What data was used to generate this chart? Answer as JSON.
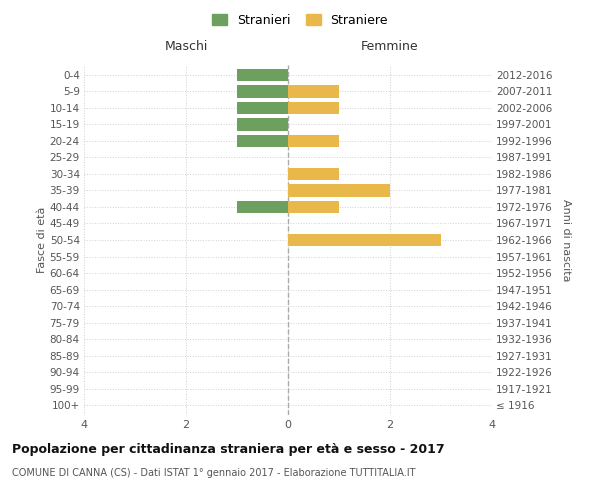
{
  "age_groups": [
    "100+",
    "95-99",
    "90-94",
    "85-89",
    "80-84",
    "75-79",
    "70-74",
    "65-69",
    "60-64",
    "55-59",
    "50-54",
    "45-49",
    "40-44",
    "35-39",
    "30-34",
    "25-29",
    "20-24",
    "15-19",
    "10-14",
    "5-9",
    "0-4"
  ],
  "birth_years": [
    "≤ 1916",
    "1917-1921",
    "1922-1926",
    "1927-1931",
    "1932-1936",
    "1937-1941",
    "1942-1946",
    "1947-1951",
    "1952-1956",
    "1957-1961",
    "1962-1966",
    "1967-1971",
    "1972-1976",
    "1977-1981",
    "1982-1986",
    "1987-1991",
    "1992-1996",
    "1997-2001",
    "2002-2006",
    "2007-2011",
    "2012-2016"
  ],
  "stranieri_maschi": [
    0,
    0,
    0,
    0,
    0,
    0,
    0,
    0,
    0,
    0,
    0,
    0,
    1,
    0,
    0,
    0,
    1,
    1,
    1,
    1,
    1
  ],
  "straniere_femmine": [
    0,
    0,
    0,
    0,
    0,
    0,
    0,
    0,
    0,
    0,
    3,
    0,
    1,
    2,
    1,
    0,
    1,
    0,
    1,
    1,
    0
  ],
  "stranieri_color": "#6d9f5e",
  "straniere_color": "#e8b84b",
  "background_color": "#ffffff",
  "grid_color": "#d0d0d0",
  "title": "Popolazione per cittadinanza straniera per età e sesso - 2017",
  "subtitle": "COMUNE DI CANNA (CS) - Dati ISTAT 1° gennaio 2017 - Elaborazione TUTTITALIA.IT",
  "xlabel_left": "Maschi",
  "xlabel_right": "Femmine",
  "ylabel_left": "Fasce di età",
  "ylabel_right": "Anni di nascita",
  "xlim": 4,
  "bar_height": 0.75
}
